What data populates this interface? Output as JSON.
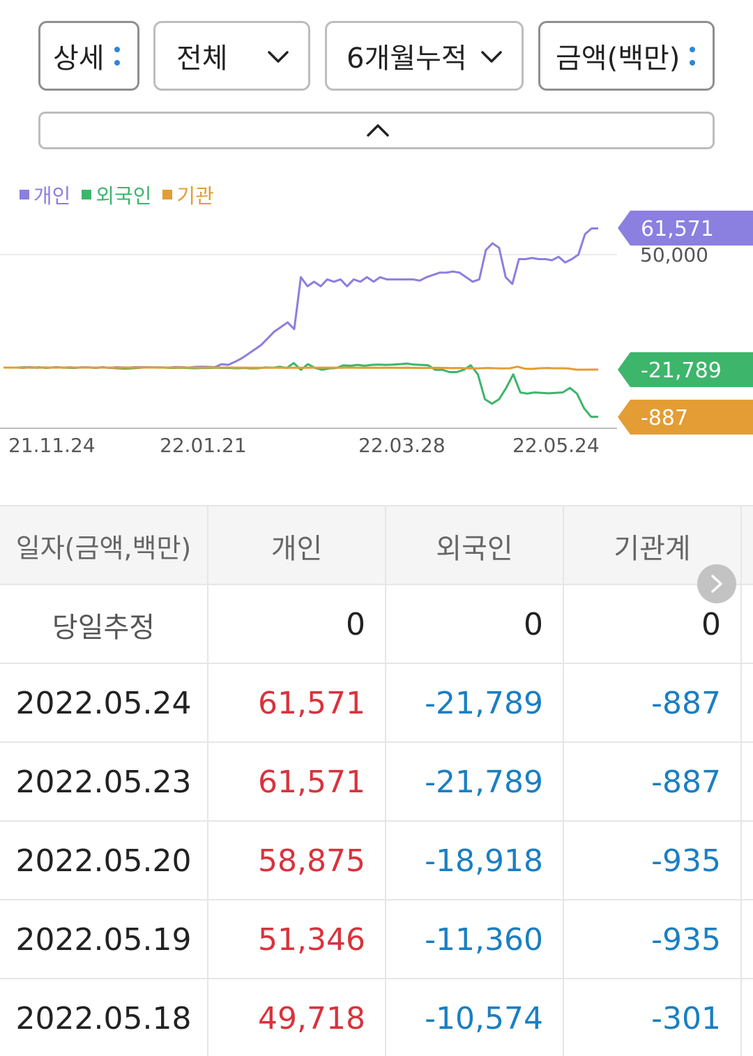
{
  "filters": {
    "detail": "상세",
    "all": "전체",
    "period": "6개월누적",
    "amount": "금액(백만)"
  },
  "colors": {
    "individual": "#8b7fe0",
    "foreign": "#3db56b",
    "institution": "#e39d34",
    "positive": "#d8333c",
    "negative": "#1a7fc2"
  },
  "legend": [
    "개인",
    "외국인",
    "기관"
  ],
  "chart_data": {
    "type": "line",
    "x_ticks": [
      "21.11.24",
      "22.01.21",
      "22.03.28",
      "22.05.24"
    ],
    "y_tick_labels": [
      "50,000"
    ],
    "ylim": [
      -28000,
      68000
    ],
    "series": [
      {
        "name": "개인",
        "end_label": "61,571",
        "values": [
          0,
          0,
          0,
          -150,
          250,
          -120,
          80,
          -100,
          200,
          -80,
          150,
          -50,
          120,
          100,
          -150,
          250,
          -200,
          150,
          100,
          0,
          200,
          180,
          150,
          0,
          80,
          0,
          250,
          200,
          0,
          300,
          400,
          300,
          200,
          1500,
          1200,
          2500,
          4000,
          6000,
          8000,
          10000,
          13000,
          16000,
          18000,
          20000,
          17000,
          40000,
          36000,
          38000,
          36000,
          39000,
          38000,
          39000,
          36000,
          39000,
          38000,
          40000,
          38000,
          40000,
          39000,
          39000,
          39000,
          39000,
          39000,
          38500,
          40000,
          41000,
          42000,
          42000,
          42500,
          42000,
          40000,
          38000,
          39000,
          52000,
          55000,
          53000,
          40000,
          37000,
          48000,
          48000,
          48500,
          48000,
          48000,
          47500,
          49000,
          46500,
          48000,
          50000,
          59000,
          61571,
          61571
        ]
      },
      {
        "name": "외국인",
        "end_label": "-21,789",
        "values": [
          0,
          0,
          0,
          200,
          -100,
          150,
          -200,
          100,
          50,
          -120,
          -200,
          100,
          50,
          -150,
          80,
          -100,
          -300,
          -500,
          -400,
          -200,
          100,
          100,
          80,
          -100,
          -200,
          -100,
          -200,
          -300,
          -200,
          -200,
          -100,
          -150,
          -200,
          -300,
          -200,
          -400,
          -300,
          100,
          -100,
          400,
          -200,
          2000,
          -1000,
          1500,
          -200,
          -1000,
          -400,
          -200,
          1000,
          800,
          1200,
          800,
          1200,
          1300,
          1200,
          1300,
          1500,
          1800,
          1300,
          1200,
          1000,
          -1000,
          -1000,
          -2000,
          -2000,
          -1000,
          1000,
          -3000,
          -14000,
          -16000,
          -14000,
          -9000,
          -3000,
          -11000,
          -11500,
          -11000,
          -11200,
          -11400,
          -11200,
          -11000,
          -9000,
          -11500,
          -18000,
          -21789,
          -21789
        ]
      },
      {
        "name": "기관",
        "end_label": "-887",
        "values": [
          0,
          0,
          0,
          -50,
          50,
          -30,
          40,
          -20,
          30,
          -10,
          20,
          0,
          -40,
          30,
          -20,
          10,
          -30,
          20,
          -10,
          0,
          30,
          -20,
          10,
          -30,
          20,
          0,
          -10,
          -20,
          20,
          10,
          -10,
          0,
          -20,
          -30,
          -50,
          -80,
          -60,
          -40,
          -50,
          -100,
          -80,
          -60,
          -40,
          -40,
          -30,
          -20,
          -50,
          0,
          -60,
          -80,
          -100,
          -120,
          -80,
          -100,
          -120,
          -100,
          -150,
          -200,
          -150,
          -100,
          -150,
          -250,
          -200,
          -300,
          -400,
          -300,
          -200,
          -300,
          -400,
          -300,
          400,
          -500,
          -600,
          -300,
          -200,
          -300,
          -301,
          -400,
          -935,
          -935,
          -887,
          -887
        ]
      }
    ]
  },
  "table": {
    "headers": [
      "일자(금액,백만)",
      "개인",
      "외국인",
      "기관계"
    ],
    "estimate": {
      "label": "당일추정",
      "individual": "0",
      "foreign": "0",
      "institution": "0"
    },
    "rows": [
      {
        "date": "2022.05.24",
        "individual": "61,571",
        "foreign": "-21,789",
        "institution": "-887"
      },
      {
        "date": "2022.05.23",
        "individual": "61,571",
        "foreign": "-21,789",
        "institution": "-887"
      },
      {
        "date": "2022.05.20",
        "individual": "58,875",
        "foreign": "-18,918",
        "institution": "-935"
      },
      {
        "date": "2022.05.19",
        "individual": "51,346",
        "foreign": "-11,360",
        "institution": "-935"
      },
      {
        "date": "2022.05.18",
        "individual": "49,718",
        "foreign": "-10,574",
        "institution": "-301"
      }
    ]
  }
}
